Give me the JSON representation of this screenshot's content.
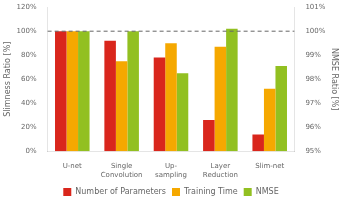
{
  "chart_data": {
    "type": "bar",
    "categories": [
      "U-net",
      "Single\nConvolution",
      "Up-\nsampling",
      "Layer\nReduction",
      "Slim-net"
    ],
    "series": [
      {
        "name": "Number of Parameters",
        "color": "#d9261c",
        "values": [
          100,
          92,
          78,
          26,
          14
        ]
      },
      {
        "name": "Training Time",
        "color": "#f5a800",
        "values": [
          100,
          75,
          90,
          87,
          52
        ]
      },
      {
        "name": "NMSE",
        "color": "#92c021",
        "values": [
          100,
          100,
          65,
          102,
          71
        ]
      }
    ],
    "ylabel": "Slimness Ratio [%]",
    "y2label": "NMSE Ratio [%]",
    "ylim": [
      0,
      120
    ],
    "yticks": [
      {
        "value": 0,
        "label": "0%"
      },
      {
        "value": 20,
        "label": "20%"
      },
      {
        "value": 40,
        "label": "40%"
      },
      {
        "value": 60,
        "label": "60%"
      },
      {
        "value": 80,
        "label": "80%"
      },
      {
        "value": 100,
        "label": "100%"
      },
      {
        "value": 120,
        "label": "120%"
      }
    ],
    "y2lim": [
      95,
      101
    ],
    "y2ticks": [
      {
        "value": 95,
        "label": "95%"
      },
      {
        "value": 96,
        "label": "96%"
      },
      {
        "value": 97,
        "label": "97%"
      },
      {
        "value": 98,
        "label": "98%"
      },
      {
        "value": 99,
        "label": "99%"
      },
      {
        "value": 100,
        "label": "100%"
      },
      {
        "value": 101,
        "label": "101%"
      }
    ],
    "reference_lines": [
      {
        "value": 100,
        "color": "#666666",
        "line_style": "dashed"
      }
    ],
    "grid": false,
    "legend": "bottom"
  }
}
